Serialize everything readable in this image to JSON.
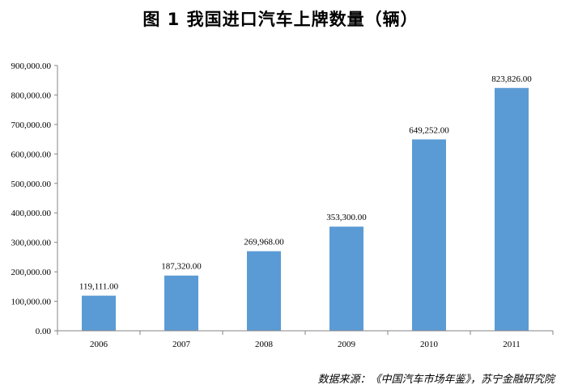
{
  "chart_data": {
    "type": "bar",
    "title": "图 1  我国进口汽车上牌数量（辆）",
    "categories": [
      "2006",
      "2007",
      "2008",
      "2009",
      "2010",
      "2011"
    ],
    "values": [
      119111,
      187320,
      269968,
      353300,
      649252,
      823826
    ],
    "data_labels": [
      "119,111.00",
      "187,320.00",
      "269,968.00",
      "353,300.00",
      "649,252.00",
      "823,826.00"
    ],
    "y_ticks": [
      "0.00",
      "100,000.00",
      "200,000.00",
      "300,000.00",
      "400,000.00",
      "500,000.00",
      "600,000.00",
      "700,000.00",
      "800,000.00",
      "900,000.00"
    ],
    "ylim": [
      0,
      900000
    ],
    "xlabel": "",
    "ylabel": "",
    "bar_color": "#5B9BD5",
    "legend": "none",
    "grid": false
  },
  "source": "数据来源：《中国汽车市场年鉴》，苏宁金融研究院"
}
